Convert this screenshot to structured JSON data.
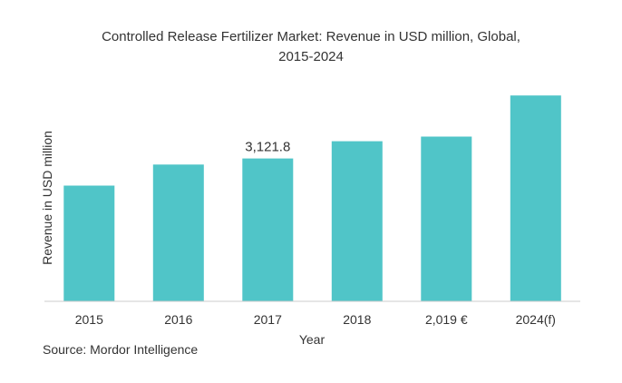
{
  "chart_data": {
    "type": "bar",
    "title_lines": [
      "Controlled Release Fertilizer Market: Revenue in USD million, Global,",
      "2015-2024"
    ],
    "xlabel": "Year",
    "ylabel": "Revenue in USD million",
    "categories": [
      "2015",
      "2016",
      "2017",
      "2018",
      "2,019 €",
      "2024(f)"
    ],
    "values": [
      2530,
      2990,
      3121.8,
      3500,
      3600,
      4500
    ],
    "data_labels": [
      "",
      "",
      "3,121.8",
      "",
      "",
      ""
    ],
    "ylim": [
      0,
      4900
    ],
    "grid": false,
    "legend": "none",
    "bar_color": "#50c5c8",
    "axis_color": "#cccccc"
  },
  "source": "Source: Mordor Intelligence"
}
